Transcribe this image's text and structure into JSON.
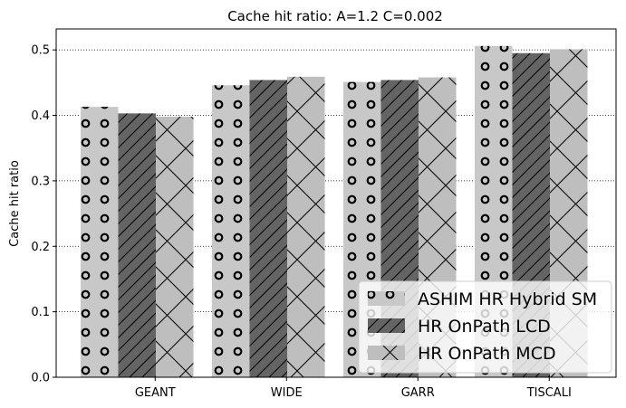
{
  "chart_data": {
    "type": "bar",
    "title": "Cache hit ratio: A=1.2 C=0.002",
    "xlabel": "",
    "ylabel": "Cache hit ratio",
    "categories": [
      "GEANT",
      "WIDE",
      "GARR",
      "TISCALI"
    ],
    "ylim": [
      0,
      0.532
    ],
    "yticks": [
      0.0,
      0.1,
      0.2,
      0.3,
      0.4,
      0.5
    ],
    "ytick_labels": [
      "0.0",
      "0.1",
      "0.2",
      "0.3",
      "0.4",
      "0.5"
    ],
    "grid": "horizontal dotted",
    "legend_position": "bottom-right",
    "series": [
      {
        "name": "ASHIM HR Hybrid SM",
        "values": [
          0.413,
          0.446,
          0.451,
          0.506
        ],
        "color": "#c8c8c8",
        "pattern": "circles"
      },
      {
        "name": "HR OnPath LCD",
        "values": [
          0.403,
          0.454,
          0.454,
          0.495
        ],
        "color": "#646464",
        "pattern": "diagonal"
      },
      {
        "name": "HR OnPath MCD",
        "values": [
          0.398,
          0.459,
          0.458,
          0.501
        ],
        "color": "#bebebe",
        "pattern": "crosshatch"
      }
    ]
  }
}
